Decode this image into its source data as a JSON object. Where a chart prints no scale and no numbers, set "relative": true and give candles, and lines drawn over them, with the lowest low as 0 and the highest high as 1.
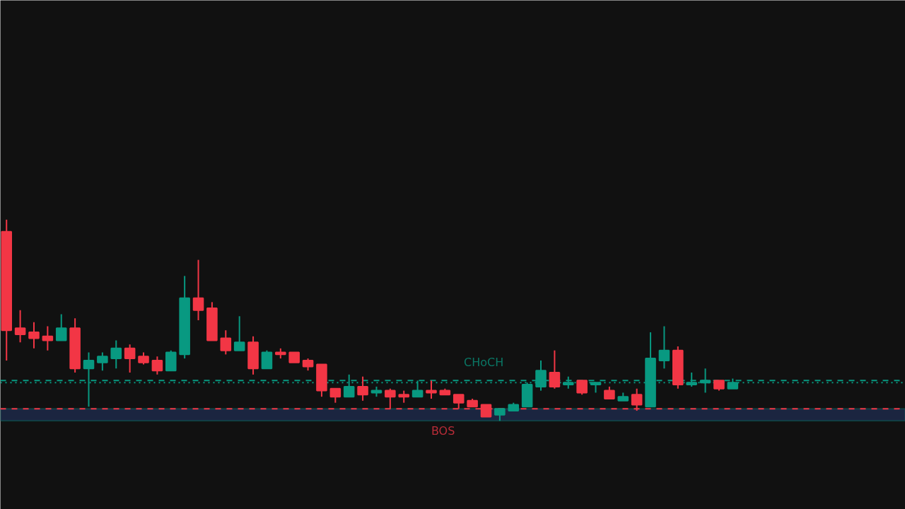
{
  "chart_data": {
    "type": "candlestick",
    "relative": true,
    "categories": [
      null,
      null,
      null,
      null,
      null,
      null,
      null,
      null,
      null,
      null,
      null,
      null,
      null,
      null,
      null,
      null,
      null,
      null,
      null,
      null,
      null,
      null,
      null,
      null,
      null,
      null,
      null,
      null,
      null,
      null,
      null,
      null,
      null,
      null,
      null,
      null,
      null,
      null,
      null,
      null,
      null,
      null,
      null,
      null,
      null,
      null,
      null,
      null,
      null,
      null,
      null,
      null,
      null,
      null
    ],
    "ohlc": [
      [
        0.94,
        1.0,
        0.3,
        0.45
      ],
      [
        0.46,
        0.55,
        0.39,
        0.43
      ],
      [
        0.44,
        0.49,
        0.36,
        0.41
      ],
      [
        0.42,
        0.47,
        0.35,
        0.4
      ],
      [
        0.4,
        0.53,
        0.4,
        0.46
      ],
      [
        0.46,
        0.51,
        0.24,
        0.26
      ],
      [
        0.26,
        0.34,
        0.07,
        0.3
      ],
      [
        0.29,
        0.34,
        0.25,
        0.32
      ],
      [
        0.31,
        0.4,
        0.26,
        0.36
      ],
      [
        0.36,
        0.38,
        0.24,
        0.31
      ],
      [
        0.32,
        0.34,
        0.28,
        0.29
      ],
      [
        0.3,
        0.32,
        0.23,
        0.25
      ],
      [
        0.25,
        0.35,
        0.25,
        0.34
      ],
      [
        0.33,
        0.72,
        0.31,
        0.61
      ],
      [
        0.61,
        0.8,
        0.5,
        0.55
      ],
      [
        0.56,
        0.59,
        0.4,
        0.4
      ],
      [
        0.41,
        0.45,
        0.33,
        0.35
      ],
      [
        0.35,
        0.52,
        0.35,
        0.39
      ],
      [
        0.39,
        0.42,
        0.23,
        0.26
      ],
      [
        0.26,
        0.35,
        0.26,
        0.34
      ],
      [
        0.34,
        0.36,
        0.31,
        0.33
      ],
      [
        0.34,
        0.34,
        0.29,
        0.29
      ],
      [
        0.3,
        0.31,
        0.25,
        0.27
      ],
      [
        0.28,
        0.28,
        0.12,
        0.15
      ],
      [
        0.16,
        0.16,
        0.09,
        0.12
      ],
      [
        0.12,
        0.23,
        0.12,
        0.17
      ],
      [
        0.17,
        0.22,
        0.1,
        0.13
      ],
      [
        0.14,
        0.17,
        0.12,
        0.15
      ],
      [
        0.15,
        0.16,
        0.06,
        0.12
      ],
      [
        0.13,
        0.15,
        0.09,
        0.12
      ],
      [
        0.12,
        0.2,
        0.12,
        0.15
      ],
      [
        0.15,
        0.2,
        0.11,
        0.14
      ],
      [
        0.15,
        0.16,
        0.13,
        0.13
      ],
      [
        0.13,
        0.13,
        0.06,
        0.09
      ],
      [
        0.1,
        0.11,
        0.07,
        0.07
      ],
      [
        0.08,
        0.08,
        0.02,
        0.02
      ],
      [
        0.03,
        0.06,
        0.0,
        0.06
      ],
      [
        0.05,
        0.09,
        0.05,
        0.08
      ],
      [
        0.07,
        0.19,
        0.07,
        0.18
      ],
      [
        0.17,
        0.3,
        0.15,
        0.25
      ],
      [
        0.24,
        0.35,
        0.16,
        0.17
      ],
      [
        0.18,
        0.22,
        0.16,
        0.19
      ],
      [
        0.2,
        0.2,
        0.13,
        0.14
      ],
      [
        0.18,
        0.19,
        0.14,
        0.19
      ],
      [
        0.15,
        0.17,
        0.11,
        0.11
      ],
      [
        0.1,
        0.14,
        0.1,
        0.12
      ],
      [
        0.13,
        0.16,
        0.05,
        0.08
      ],
      [
        0.07,
        0.44,
        0.07,
        0.31
      ],
      [
        0.3,
        0.47,
        0.26,
        0.35
      ],
      [
        0.35,
        0.37,
        0.16,
        0.18
      ],
      [
        0.18,
        0.24,
        0.17,
        0.19
      ],
      [
        0.19,
        0.26,
        0.14,
        0.2
      ],
      [
        0.2,
        0.2,
        0.15,
        0.16
      ],
      [
        0.16,
        0.21,
        0.16,
        0.19
      ]
    ],
    "colors": [
      "#f23645",
      "#f23645",
      "#f23645",
      "#f23645",
      "#089981",
      "#f23645",
      "#089981",
      "#089981",
      "#089981",
      "#f23645",
      "#f23645",
      "#f23645",
      "#089981",
      "#089981",
      "#f23645",
      "#f23645",
      "#f23645",
      "#089981",
      "#f23645",
      "#089981",
      "#f23645",
      "#f23645",
      "#f23645",
      "#f23645",
      "#f23645",
      "#089981",
      "#f23645",
      "#089981",
      "#f23645",
      "#f23645",
      "#089981",
      "#f23645",
      "#f23645",
      "#f23645",
      "#f23645",
      "#f23645",
      "#089981",
      "#089981",
      "#089981",
      "#089981",
      "#f23645",
      "#089981",
      "#f23645",
      "#089981",
      "#f23645",
      "#089981",
      "#f23645",
      "#089981",
      "#089981",
      "#f23645",
      "#089981",
      "#089981",
      "#f23645",
      "#089981"
    ],
    "ref_lines": [
      {
        "axis": "y",
        "value": 0.19,
        "color": "#089981",
        "line_style": "dotted"
      },
      {
        "axis": "y",
        "value": 0.2,
        "color": "#089981",
        "line_style": "dashed",
        "label": "CHoCH"
      },
      {
        "axis": "y",
        "value": 0.06,
        "color": "#f23645",
        "line_style": "dashed",
        "label": "BOS"
      }
    ],
    "bands": [
      {
        "axis": "y",
        "from": 0.0,
        "to": 0.06,
        "color": "#1b2540"
      }
    ]
  }
}
